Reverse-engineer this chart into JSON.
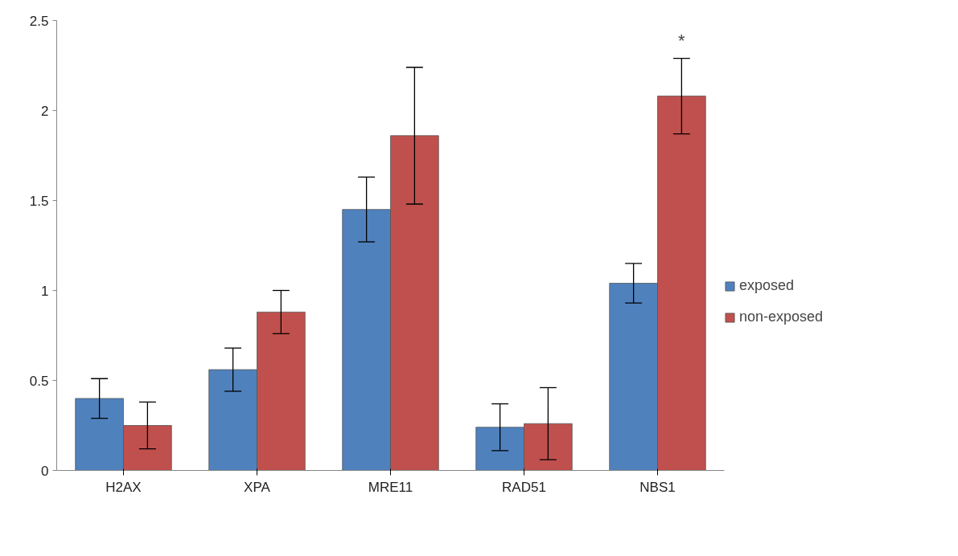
{
  "chart_data": {
    "type": "bar",
    "categories": [
      "H2AX",
      "XPA",
      "MRE11",
      "RAD51",
      "NBS1"
    ],
    "series": [
      {
        "name": "exposed",
        "color": "#4f81bd",
        "values": [
          0.4,
          0.56,
          1.45,
          0.24,
          1.04
        ],
        "errors": [
          0.11,
          0.12,
          0.18,
          0.13,
          0.11
        ]
      },
      {
        "name": "non-exposed",
        "color": "#c0504d",
        "values": [
          0.25,
          0.88,
          1.86,
          0.26,
          2.08
        ],
        "errors": [
          0.13,
          0.12,
          0.38,
          0.2,
          0.21
        ]
      }
    ],
    "ylim": [
      0,
      2.5
    ],
    "yticks": [
      0,
      0.5,
      1,
      1.5,
      2,
      2.5
    ],
    "annotations": [
      "*"
    ],
    "legend": "right",
    "grid": false
  }
}
